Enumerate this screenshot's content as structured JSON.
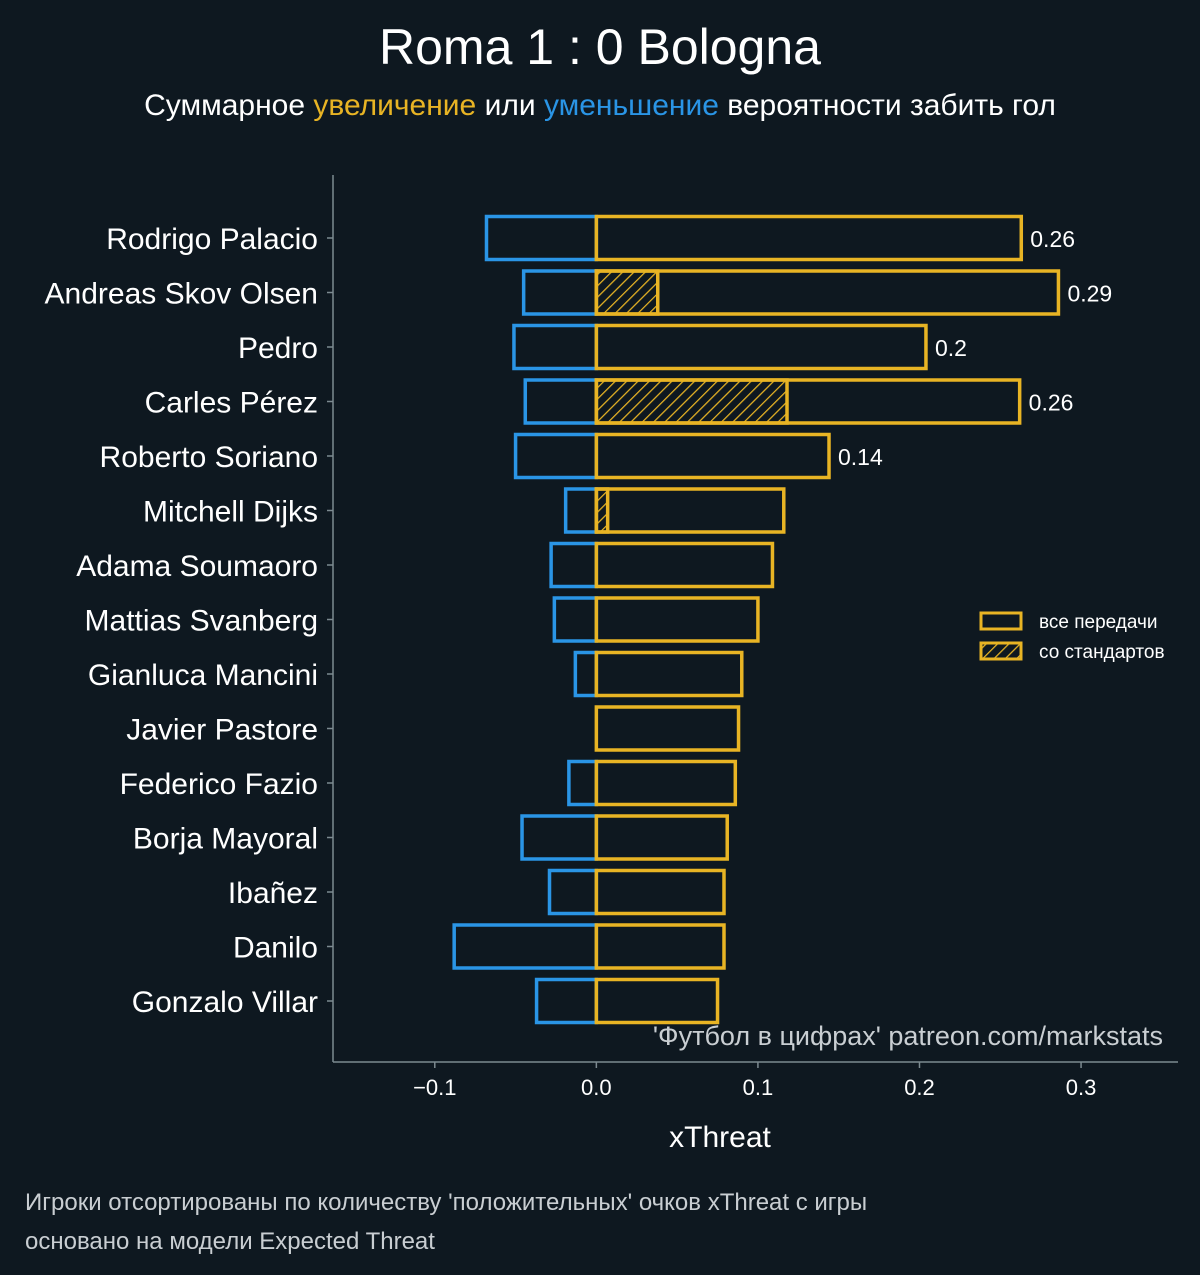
{
  "title": "Roma 1 : 0 Bologna",
  "subtitle": {
    "part1": "Суммарное ",
    "increase": "увеличение",
    "part2": " или ",
    "decrease": "уменьшение",
    "part3": " вероятности забить гол"
  },
  "colors": {
    "background": "#0e1820",
    "positive": "#e8b424",
    "negative": "#2a95e6",
    "axis": "#7c8a90",
    "text": "#ffffff",
    "muted": "#c9ced2"
  },
  "watermark": "'Футбол в цифрах' patreon.com/markstats",
  "footnotes": [
    "Игроки отсортированы по количеству 'положительных' очков xThreat с игры",
    "основано на модели Expected Threat"
  ],
  "chart_data": {
    "type": "bar",
    "orientation": "horizontal",
    "title": "Roma 1 : 0 Bologna",
    "xlabel": "xThreat",
    "ylabel": "",
    "xlim": [
      -0.163,
      0.36
    ],
    "xticks": [
      -0.1,
      0.0,
      0.1,
      0.2,
      0.3
    ],
    "xtick_labels": [
      "−0.1",
      "0.0",
      "0.1",
      "0.2",
      "0.3"
    ],
    "grid": false,
    "legend_position": "center-right",
    "legend": [
      {
        "name": "все передачи",
        "style": "outline"
      },
      {
        "name": "со стандартов",
        "style": "hatched"
      }
    ],
    "categories": [
      "Rodrigo Palacio",
      "Andreas Skov Olsen",
      "Pedro",
      "Carles Pérez",
      "Roberto Soriano",
      "Mitchell Dijks",
      "Adama Soumaoro",
      "Mattias Svanberg",
      "Gianluca Mancini",
      "Javier Pastore",
      "Federico Fazio",
      "Borja Mayoral",
      "Ibañez",
      "Danilo",
      "Gonzalo Villar"
    ],
    "series": [
      {
        "name": "positive",
        "values": [
          0.263,
          0.286,
          0.204,
          0.262,
          0.144,
          0.116,
          0.109,
          0.1,
          0.09,
          0.088,
          0.086,
          0.081,
          0.079,
          0.079,
          0.075
        ]
      },
      {
        "name": "negative",
        "values": [
          -0.068,
          -0.045,
          -0.051,
          -0.044,
          -0.05,
          -0.019,
          -0.028,
          -0.026,
          -0.013,
          0.0,
          -0.017,
          -0.046,
          -0.029,
          -0.088,
          -0.037
        ]
      },
      {
        "name": "set_pieces",
        "values": [
          0.0,
          0.038,
          0.0,
          0.118,
          0.0,
          0.007,
          0.0,
          0.0,
          0.0,
          0.0,
          0.0,
          0.0,
          0.0,
          0.0,
          0.0
        ]
      }
    ],
    "value_labels": [
      "0.26",
      "0.29",
      "0.2",
      "0.26",
      "0.14",
      "",
      "",
      "",
      "",
      "",
      "",
      "",
      "",
      "",
      ""
    ]
  }
}
